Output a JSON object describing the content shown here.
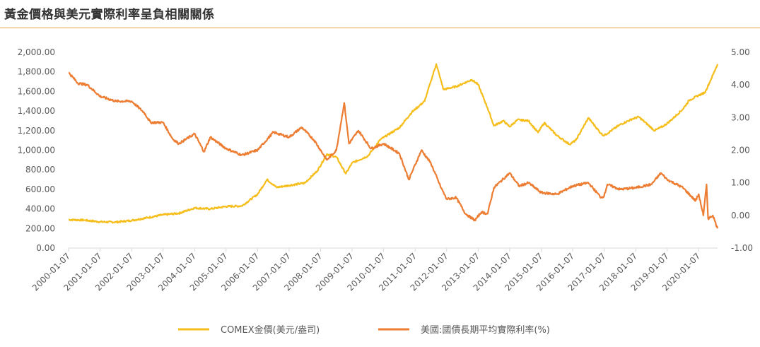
{
  "title": "黃金價格與美元實際利率呈負相關關係",
  "colors": {
    "gold": "#f5be1c",
    "rate": "#ec7d33",
    "rule": "#e7a23a",
    "axis": "#d9d9d9",
    "text": "#595959"
  },
  "chart_data": {
    "type": "line",
    "title": "黃金價格與美元實際利率呈負相關關係",
    "x_tick_labels": [
      "2000-01-07",
      "2001-01-07",
      "2002-01-07",
      "2003-01-07",
      "2004-01-07",
      "2005-01-07",
      "2006-01-07",
      "2007-01-07",
      "2008-01-07",
      "2009-01-07",
      "2010-01-07",
      "2011-01-07",
      "2012-01-07",
      "2013-01-07",
      "2014-01-07",
      "2015-01-07",
      "2016-01-07",
      "2017-01-07",
      "2018-01-07",
      "2019-01-07",
      "2020-01-07"
    ],
    "y_left": {
      "ylim": [
        0,
        2000
      ],
      "ticks": [
        "0.00",
        "200.00",
        "400.00",
        "600.00",
        "800.00",
        "1,000.00",
        "1,200.00",
        "1,400.00",
        "1,600.00",
        "1,800.00",
        "2,000.00"
      ]
    },
    "y_right": {
      "ylim": [
        -1,
        5
      ],
      "ticks": [
        "-1.00",
        "0.00",
        "1.00",
        "2.00",
        "3.00",
        "4.00",
        "5.00"
      ]
    },
    "x_range": [
      2000.0,
      2020.6
    ],
    "legend_position": "bottom",
    "series": [
      {
        "name": "COMEX金價(美元/盎司)",
        "axis": "left",
        "color": "#f5be1c",
        "points": [
          [
            2000.0,
            290
          ],
          [
            2000.5,
            285
          ],
          [
            2001.0,
            268
          ],
          [
            2001.5,
            265
          ],
          [
            2002.0,
            282
          ],
          [
            2002.5,
            310
          ],
          [
            2003.0,
            340
          ],
          [
            2003.5,
            355
          ],
          [
            2004.0,
            410
          ],
          [
            2004.5,
            400
          ],
          [
            2005.0,
            425
          ],
          [
            2005.5,
            430
          ],
          [
            2006.0,
            550
          ],
          [
            2006.3,
            700
          ],
          [
            2006.6,
            620
          ],
          [
            2007.0,
            640
          ],
          [
            2007.5,
            665
          ],
          [
            2007.9,
            790
          ],
          [
            2008.2,
            960
          ],
          [
            2008.5,
            930
          ],
          [
            2008.8,
            760
          ],
          [
            2009.0,
            870
          ],
          [
            2009.5,
            940
          ],
          [
            2009.9,
            1110
          ],
          [
            2010.5,
            1230
          ],
          [
            2010.9,
            1390
          ],
          [
            2011.3,
            1500
          ],
          [
            2011.67,
            1880
          ],
          [
            2011.9,
            1620
          ],
          [
            2012.3,
            1650
          ],
          [
            2012.8,
            1720
          ],
          [
            2013.0,
            1670
          ],
          [
            2013.3,
            1430
          ],
          [
            2013.5,
            1250
          ],
          [
            2013.8,
            1300
          ],
          [
            2014.0,
            1240
          ],
          [
            2014.25,
            1310
          ],
          [
            2014.6,
            1300
          ],
          [
            2014.9,
            1180
          ],
          [
            2015.1,
            1280
          ],
          [
            2015.5,
            1150
          ],
          [
            2015.9,
            1060
          ],
          [
            2016.1,
            1100
          ],
          [
            2016.5,
            1330
          ],
          [
            2016.9,
            1170
          ],
          [
            2017.0,
            1150
          ],
          [
            2017.5,
            1260
          ],
          [
            2017.9,
            1320
          ],
          [
            2018.1,
            1340
          ],
          [
            2018.6,
            1200
          ],
          [
            2018.9,
            1250
          ],
          [
            2019.1,
            1300
          ],
          [
            2019.5,
            1420
          ],
          [
            2019.7,
            1510
          ],
          [
            2020.0,
            1560
          ],
          [
            2020.2,
            1590
          ],
          [
            2020.4,
            1730
          ],
          [
            2020.6,
            1880
          ]
        ]
      },
      {
        "name": "美國:國債長期平均實際利率(%)",
        "axis": "right",
        "color": "#ec7d33",
        "points": [
          [
            2000.0,
            4.38
          ],
          [
            2000.3,
            4.05
          ],
          [
            2000.6,
            4.0
          ],
          [
            2001.0,
            3.65
          ],
          [
            2001.5,
            3.5
          ],
          [
            2002.0,
            3.5
          ],
          [
            2002.4,
            3.15
          ],
          [
            2002.6,
            2.85
          ],
          [
            2003.0,
            2.85
          ],
          [
            2003.3,
            2.35
          ],
          [
            2003.5,
            2.2
          ],
          [
            2004.0,
            2.5
          ],
          [
            2004.3,
            1.95
          ],
          [
            2004.5,
            2.4
          ],
          [
            2005.0,
            2.05
          ],
          [
            2005.5,
            1.85
          ],
          [
            2006.0,
            2.0
          ],
          [
            2006.5,
            2.55
          ],
          [
            2007.0,
            2.4
          ],
          [
            2007.4,
            2.7
          ],
          [
            2007.8,
            2.3
          ],
          [
            2008.2,
            1.7
          ],
          [
            2008.5,
            2.0
          ],
          [
            2008.75,
            3.45
          ],
          [
            2008.9,
            2.2
          ],
          [
            2009.2,
            2.6
          ],
          [
            2009.6,
            2.05
          ],
          [
            2010.0,
            2.2
          ],
          [
            2010.5,
            1.9
          ],
          [
            2010.8,
            1.1
          ],
          [
            2011.2,
            2.0
          ],
          [
            2011.5,
            1.6
          ],
          [
            2011.8,
            0.9
          ],
          [
            2012.0,
            0.5
          ],
          [
            2012.3,
            0.55
          ],
          [
            2012.6,
            0.05
          ],
          [
            2012.9,
            -0.15
          ],
          [
            2013.1,
            0.1
          ],
          [
            2013.3,
            0.05
          ],
          [
            2013.5,
            0.85
          ],
          [
            2014.0,
            1.3
          ],
          [
            2014.3,
            0.9
          ],
          [
            2014.6,
            1.0
          ],
          [
            2015.0,
            0.7
          ],
          [
            2015.5,
            0.65
          ],
          [
            2016.0,
            0.9
          ],
          [
            2016.5,
            1.0
          ],
          [
            2016.9,
            0.55
          ],
          [
            2017.0,
            0.6
          ],
          [
            2017.1,
            0.95
          ],
          [
            2017.5,
            0.8
          ],
          [
            2018.0,
            0.85
          ],
          [
            2018.5,
            0.95
          ],
          [
            2018.8,
            1.3
          ],
          [
            2019.0,
            1.1
          ],
          [
            2019.5,
            0.85
          ],
          [
            2019.9,
            0.45
          ],
          [
            2020.0,
            0.65
          ],
          [
            2020.15,
            0.0
          ],
          [
            2020.25,
            0.95
          ],
          [
            2020.3,
            -0.1
          ],
          [
            2020.45,
            0.0
          ],
          [
            2020.6,
            -0.4
          ]
        ]
      }
    ]
  }
}
